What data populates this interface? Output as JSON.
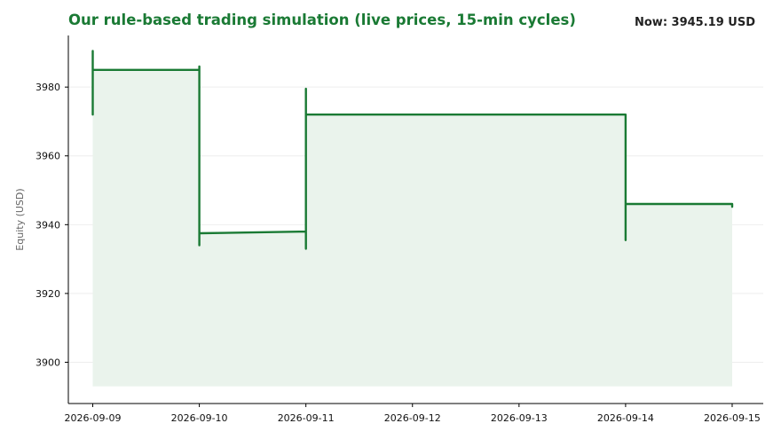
{
  "header": {
    "title": "Our rule-based trading simulation (live prices, 15-min cycles)",
    "now_label": "Now: 3945.19 USD"
  },
  "colors": {
    "line": "#1a7a34",
    "fill": "#eaf3ec",
    "title": "#1a7a34",
    "grid": "#eeeeee",
    "axis": "#000000"
  },
  "chart_data": {
    "type": "area",
    "title": "Our rule-based trading simulation (live prices, 15-min cycles)",
    "xlabel": "",
    "ylabel": "Equity (USD)",
    "ylim": [
      3888,
      3995
    ],
    "xlim": [
      "2026-09-08T18:30",
      "2026-09-15T07:00"
    ],
    "fill_baseline": 3893,
    "grid": "y",
    "legend": "none",
    "x_ticks": [
      "2026-09-09",
      "2026-09-10",
      "2026-09-11",
      "2026-09-12",
      "2026-09-13",
      "2026-09-14",
      "2026-09-15"
    ],
    "y_ticks": [
      3900,
      3920,
      3940,
      3960,
      3980
    ],
    "series": [
      {
        "x": [
          "2026-09-09T00:00",
          "2026-09-09T00:00",
          "2026-09-09T00:00",
          "2026-09-09T00:00",
          "2026-09-09T00:00",
          "2026-09-10T00:00",
          "2026-09-10T00:00",
          "2026-09-10T00:00",
          "2026-09-10T00:00",
          "2026-09-11T00:00",
          "2026-09-11T00:00",
          "2026-09-11T00:00",
          "2026-09-11T00:00",
          "2026-09-14T00:00",
          "2026-09-14T00:00",
          "2026-09-14T00:00",
          "2026-09-15T00:00",
          "2026-09-15T00:00"
        ],
        "y": [
          3977.5,
          3972.0,
          3990.5,
          3985.5,
          3985.0,
          3985.0,
          3986.0,
          3934.0,
          3937.5,
          3938.0,
          3933.0,
          3979.5,
          3972.0,
          3972.0,
          3935.5,
          3946.0,
          3946.0,
          3945.19
        ]
      }
    ]
  }
}
